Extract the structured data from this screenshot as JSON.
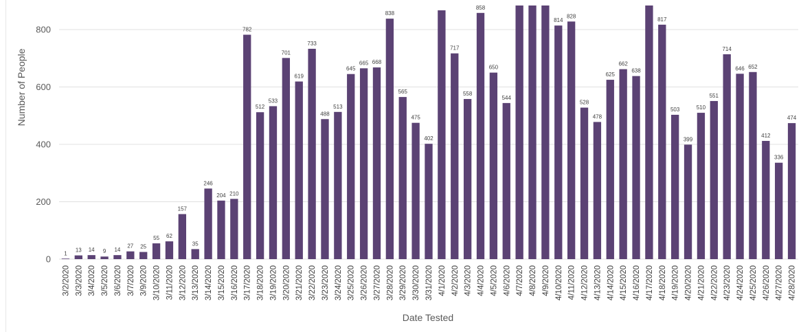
{
  "chart_data": {
    "type": "bar",
    "xlabel": "Date Tested",
    "ylabel": "Number of People",
    "ylim": [
      0,
      900
    ],
    "yticks": [
      0,
      200,
      400,
      600,
      800
    ],
    "grid": true,
    "bar_color": "#5b4274",
    "categories": [
      "3/2/2020",
      "3/3/2020",
      "3/4/2020",
      "3/5/2020",
      "3/6/2020",
      "3/7/2020",
      "3/9/2020",
      "3/10/2020",
      "3/11/2020",
      "3/12/2020",
      "3/13/2020",
      "3/14/2020",
      "3/15/2020",
      "3/16/2020",
      "3/17/2020",
      "3/18/2020",
      "3/19/2020",
      "3/20/2020",
      "3/21/2020",
      "3/22/2020",
      "3/23/2020",
      "3/24/2020",
      "3/25/2020",
      "3/26/2020",
      "3/27/2020",
      "3/28/2020",
      "3/29/2020",
      "3/30/2020",
      "3/31/2020",
      "4/1/2020",
      "4/2/2020",
      "4/3/2020",
      "4/4/2020",
      "4/5/2020",
      "4/6/2020",
      "4/7/2020",
      "4/8/2020",
      "4/9/2020",
      "4/10/2020",
      "4/11/2020",
      "4/12/2020",
      "4/13/2020",
      "4/14/2020",
      "4/15/2020",
      "4/16/2020",
      "4/17/2020",
      "4/18/2020",
      "4/19/2020",
      "4/20/2020",
      "4/21/2020",
      "4/22/2020",
      "4/23/2020",
      "4/24/2020",
      "4/25/2020",
      "4/26/2020",
      "4/27/2020",
      "4/28/2020"
    ],
    "values": [
      1,
      13,
      14,
      9,
      14,
      27,
      25,
      55,
      62,
      157,
      35,
      246,
      204,
      210,
      782,
      512,
      533,
      701,
      619,
      733,
      488,
      513,
      645,
      665,
      668,
      838,
      565,
      475,
      402,
      867,
      717,
      558,
      858,
      650,
      544,
      905,
      905,
      905,
      814,
      828,
      528,
      478,
      625,
      662,
      638,
      905,
      817,
      503,
      399,
      510,
      551,
      714,
      646,
      652,
      412,
      336,
      474
    ],
    "data_labels": [
      "1",
      "13",
      "14",
      "9",
      "14",
      "27",
      "25",
      "55",
      "62",
      "157",
      "35",
      "246",
      "204",
      "210",
      "782",
      "512",
      "533",
      "701",
      "619",
      "733",
      "488",
      "513",
      "645",
      "665",
      "668",
      "838",
      "565",
      "475",
      "402",
      "",
      "717",
      "558",
      "858",
      "650",
      "544",
      "",
      "",
      "",
      "814",
      "828",
      "528",
      "478",
      "625",
      "662",
      "638",
      "",
      "817",
      "503",
      "399",
      "510",
      "551",
      "714",
      "646",
      "652",
      "412",
      "336",
      "474"
    ]
  }
}
